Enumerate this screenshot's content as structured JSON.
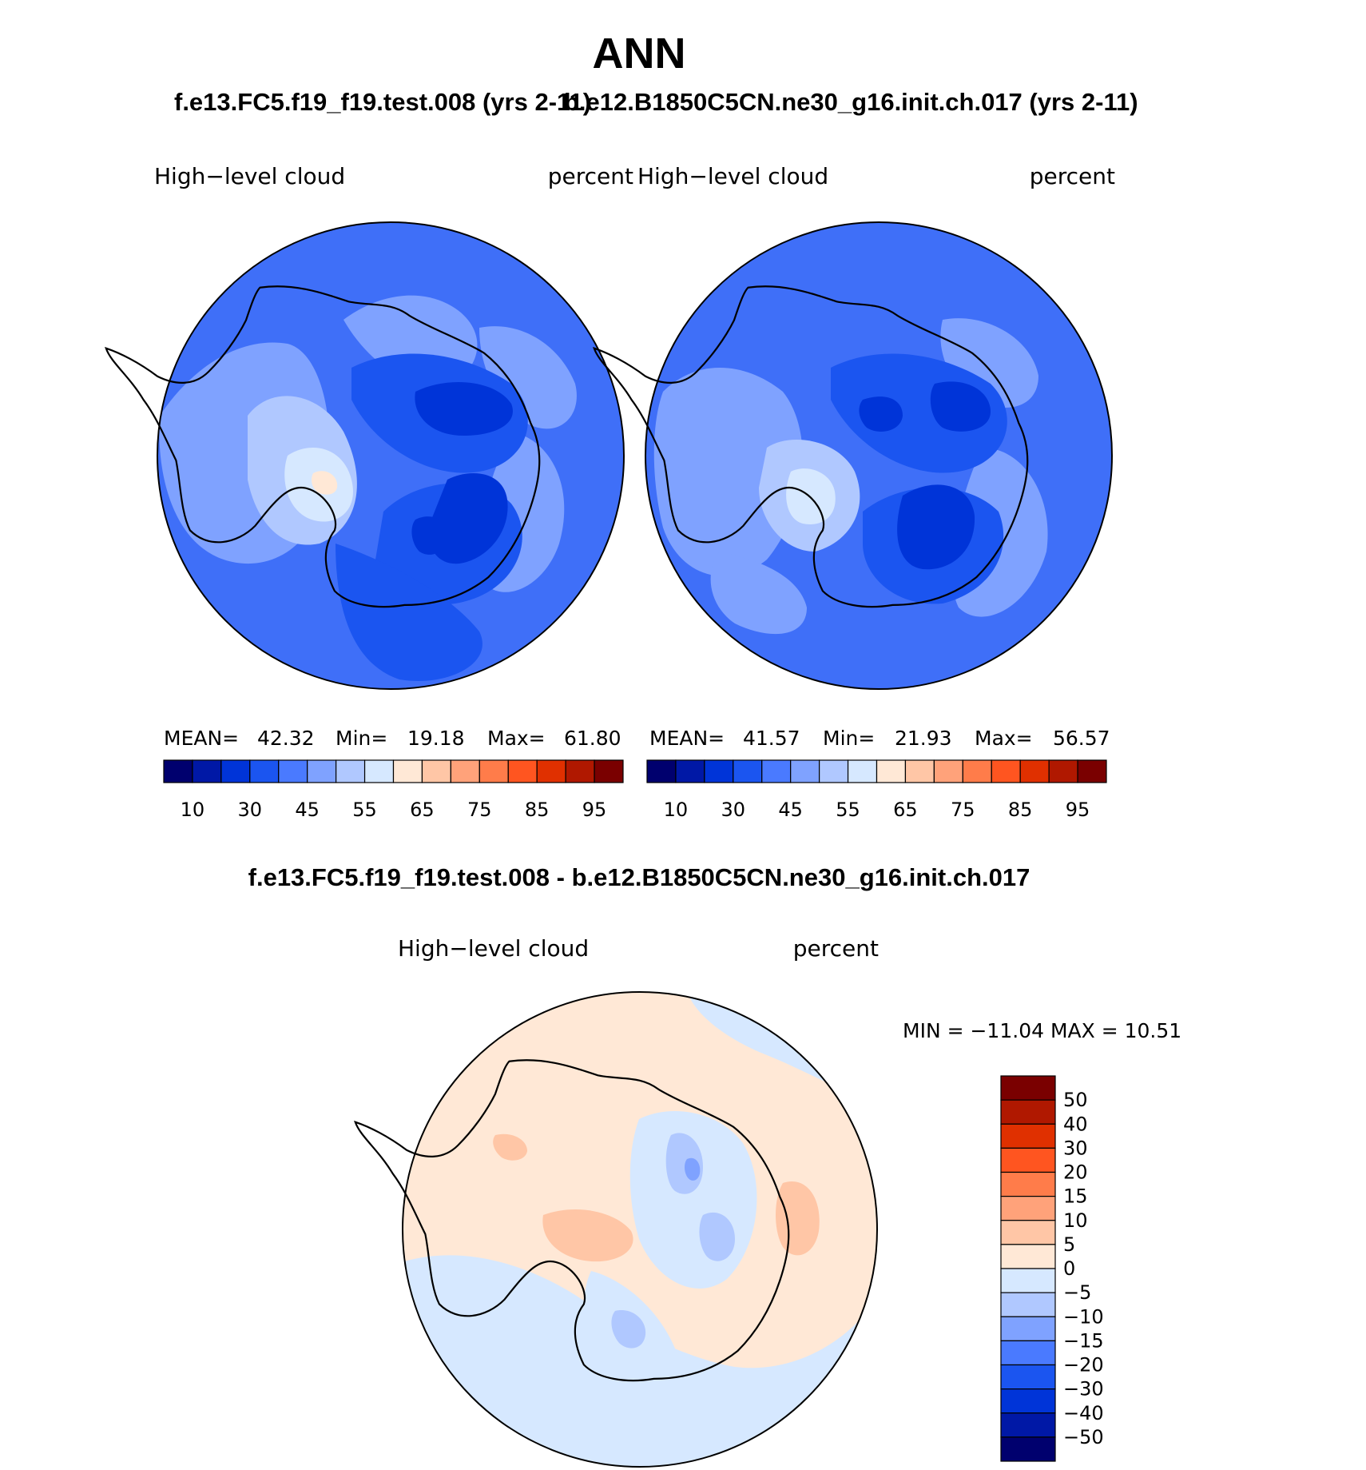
{
  "page_title": "ANN",
  "panel_left": {
    "case_title": "f.e13.FC5.f19_f19.test.008 (yrs 2-11)",
    "variable": "High−level  cloud",
    "units": "percent",
    "stats": {
      "mean_label": "MEAN=",
      "mean": "42.32",
      "min_label": "Min=",
      "min": "19.18",
      "max_label": "Max=",
      "max": "61.80"
    }
  },
  "panel_right": {
    "case_title": "b.e12.B1850C5CN.ne30_g16.init.ch.017 (yrs 2-11)",
    "variable": "High−level  cloud",
    "units": "percent",
    "stats": {
      "mean_label": "MEAN=",
      "mean": "41.57",
      "min_label": "Min=",
      "min": "21.93",
      "max_label": "Max=",
      "max": "56.57"
    }
  },
  "colorbar_top": {
    "colors": [
      "#00006e",
      "#0018a6",
      "#0034d8",
      "#1b55f0",
      "#4a7aff",
      "#7fa2ff",
      "#b0c8ff",
      "#d6e8ff",
      "#ffe8d6",
      "#ffc6a6",
      "#ffa27a",
      "#ff7c4a",
      "#ff5520",
      "#e03000",
      "#b01800",
      "#7a0000"
    ],
    "tick_labels": [
      "10",
      "30",
      "45",
      "55",
      "65",
      "75",
      "85",
      "95"
    ]
  },
  "panel_diff": {
    "title": "f.e13.FC5.f19_f19.test.008 - b.e12.B1850C5CN.ne30_g16.init.ch.017",
    "variable": "High−level  cloud",
    "units": "percent",
    "range_text": "MIN = −11.04  MAX =   10.51"
  },
  "colorbar_diff": {
    "colors": [
      "#7a0000",
      "#b01800",
      "#e03000",
      "#ff5520",
      "#ff7c4a",
      "#ffa27a",
      "#ffc6a6",
      "#ffe8d6",
      "#d6e8ff",
      "#b0c8ff",
      "#7fa2ff",
      "#4a7aff",
      "#1b55f0",
      "#0034d8",
      "#0018a6",
      "#00006e"
    ],
    "tick_labels": [
      "50",
      "40",
      "30",
      "20",
      "15",
      "10",
      "5",
      "0",
      "−5",
      "−10",
      "−15",
      "−20",
      "−30",
      "−40",
      "−50"
    ]
  }
}
